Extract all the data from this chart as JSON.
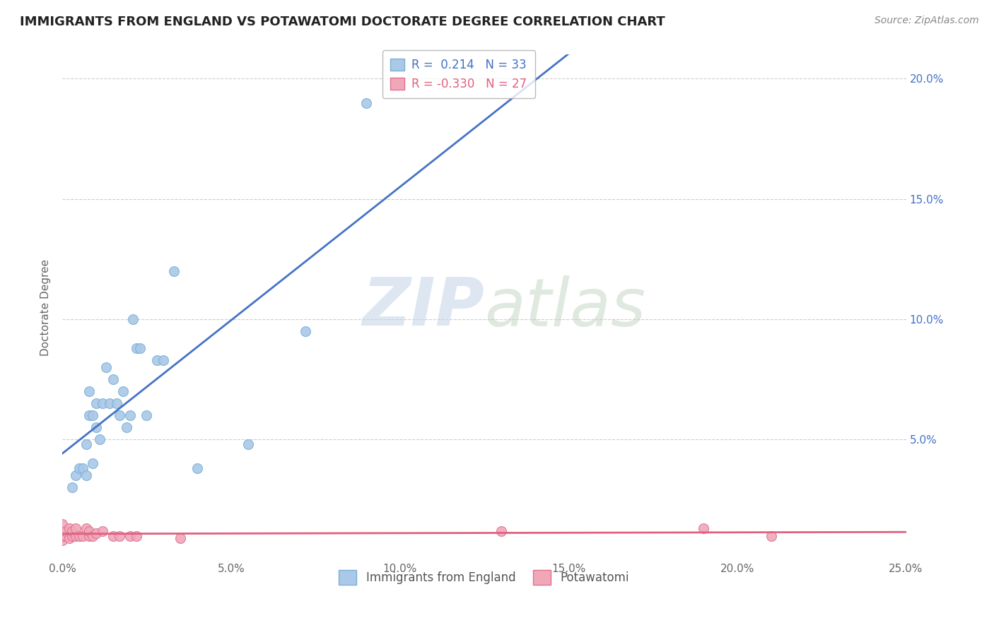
{
  "title": "IMMIGRANTS FROM ENGLAND VS POTAWATOMI DOCTORATE DEGREE CORRELATION CHART",
  "source_text": "Source: ZipAtlas.com",
  "ylabel": "Doctorate Degree",
  "xlabel": "",
  "xlim": [
    0.0,
    0.25
  ],
  "ylim": [
    0.0,
    0.21
  ],
  "xtick_labels": [
    "0.0%",
    "5.0%",
    "10.0%",
    "15.0%",
    "20.0%",
    "25.0%"
  ],
  "xtick_values": [
    0.0,
    0.05,
    0.1,
    0.15,
    0.2,
    0.25
  ],
  "ytick_labels": [
    "5.0%",
    "10.0%",
    "15.0%",
    "20.0%"
  ],
  "ytick_values": [
    0.05,
    0.1,
    0.15,
    0.2
  ],
  "england_color": "#aac8e8",
  "england_edge_color": "#7aafd4",
  "potawatomi_color": "#f0a8b8",
  "potawatomi_edge_color": "#e07090",
  "england_line_color": "#4472c4",
  "potawatomi_line_color": "#e06080",
  "legend_text_color_blue": "#4472c4",
  "legend_text_color_pink": "#e06080",
  "watermark_zip": "ZIP",
  "watermark_atlas": "atlas",
  "R_england": 0.214,
  "N_england": 33,
  "R_potawatomi": -0.33,
  "N_potawatomi": 27,
  "england_x": [
    0.003,
    0.004,
    0.005,
    0.006,
    0.007,
    0.007,
    0.008,
    0.008,
    0.009,
    0.009,
    0.01,
    0.01,
    0.011,
    0.012,
    0.013,
    0.014,
    0.015,
    0.016,
    0.017,
    0.018,
    0.019,
    0.02,
    0.021,
    0.022,
    0.023,
    0.025,
    0.028,
    0.03,
    0.033,
    0.04,
    0.055,
    0.072,
    0.09
  ],
  "england_y": [
    0.03,
    0.035,
    0.038,
    0.038,
    0.035,
    0.048,
    0.06,
    0.07,
    0.04,
    0.06,
    0.055,
    0.065,
    0.05,
    0.065,
    0.08,
    0.065,
    0.075,
    0.065,
    0.06,
    0.07,
    0.055,
    0.06,
    0.1,
    0.088,
    0.088,
    0.06,
    0.083,
    0.083,
    0.12,
    0.038,
    0.048,
    0.095,
    0.19
  ],
  "potawatomi_x": [
    0.0,
    0.0,
    0.0,
    0.001,
    0.001,
    0.002,
    0.002,
    0.003,
    0.003,
    0.004,
    0.004,
    0.005,
    0.006,
    0.007,
    0.008,
    0.008,
    0.009,
    0.01,
    0.012,
    0.015,
    0.017,
    0.02,
    0.022,
    0.035,
    0.13,
    0.19,
    0.21
  ],
  "potawatomi_y": [
    0.008,
    0.01,
    0.015,
    0.01,
    0.012,
    0.009,
    0.013,
    0.01,
    0.012,
    0.01,
    0.013,
    0.01,
    0.01,
    0.013,
    0.01,
    0.012,
    0.01,
    0.011,
    0.012,
    0.01,
    0.01,
    0.01,
    0.01,
    0.009,
    0.012,
    0.013,
    0.01
  ],
  "background_color": "#ffffff",
  "grid_color": "#cccccc",
  "title_fontsize": 13,
  "marker_size": 100
}
